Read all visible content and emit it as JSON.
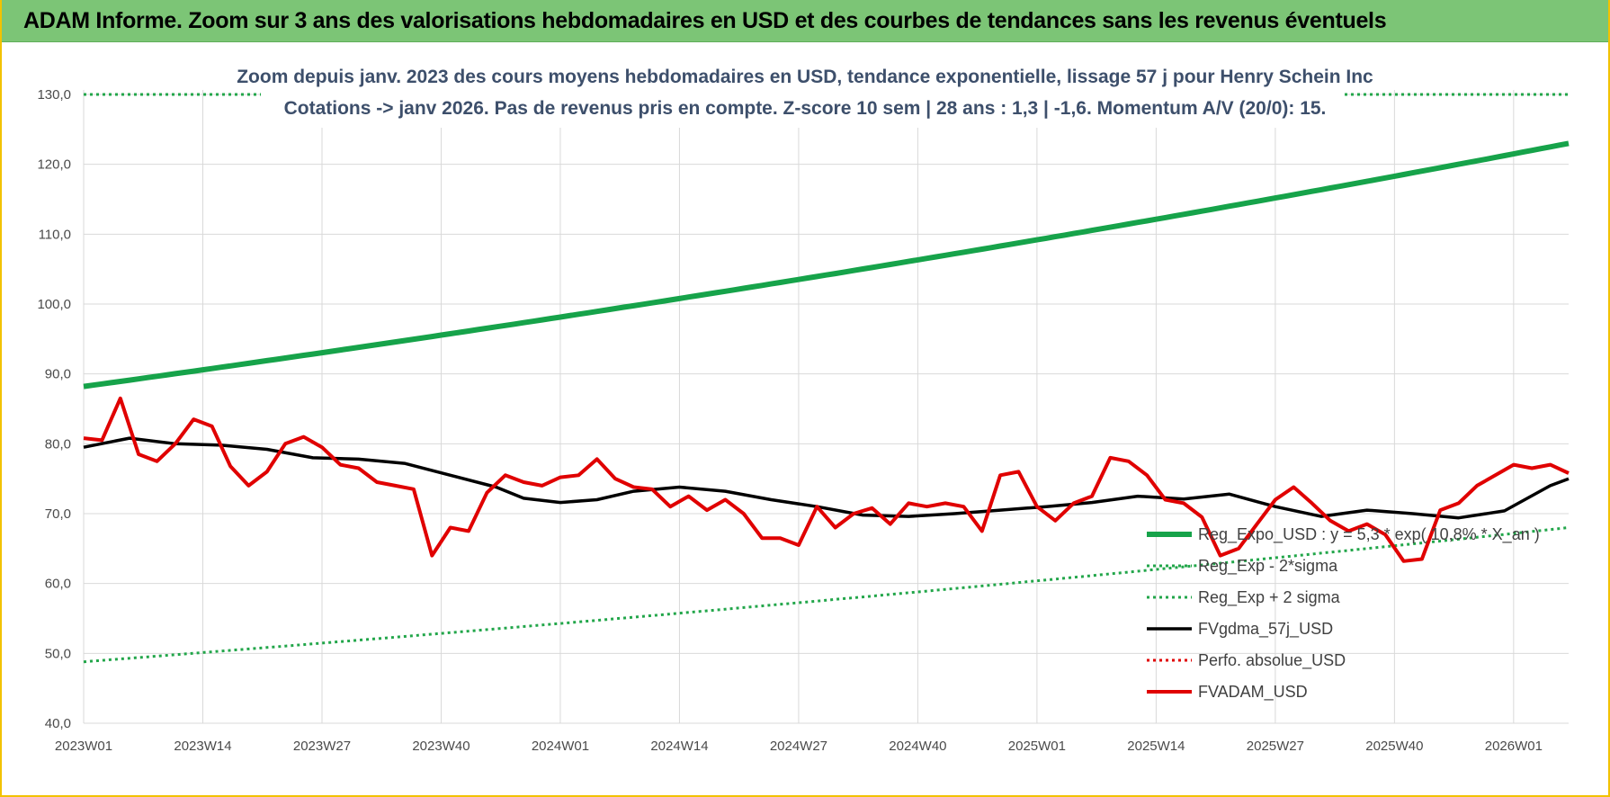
{
  "header": {
    "title": "ADAM Informe. Zoom sur 3 ans des valorisations hebdomadaires en USD et des courbes de tendances sans les revenus éventuels"
  },
  "chart_data": {
    "type": "line",
    "subtitle_line1": "Zoom depuis janv. 2023 des cours moyens hebdomadaires en USD, tendance exponentielle, lissage 57 j pour Henry Schein Inc",
    "subtitle_line2": "Cotations -> janv 2026. Pas de revenus pris en compte. Z-score 10 sem | 28 ans : 1,3 | -1,6. Momentum A/V (20/0): 15.",
    "x_tick_labels": [
      "2023W01",
      "2023W14",
      "2023W27",
      "2023W40",
      "2024W01",
      "2024W14",
      "2024W27",
      "2024W40",
      "2025W01",
      "2025W14",
      "2025W27",
      "2025W40",
      "2026W01"
    ],
    "y_tick_labels": [
      "40,0",
      "50,0",
      "60,0",
      "70,0",
      "80,0",
      "90,0",
      "100,0",
      "110,0",
      "120,0",
      "130,0"
    ],
    "ylim": [
      40,
      130
    ],
    "x_unit": "weeks since 2023W01",
    "xlim": [
      0,
      162
    ],
    "grid": true,
    "legend_position": "bottom-right",
    "series": [
      {
        "name": "Reg_Expo_USD : y = 5,3 * exp( 10,8% * X_an )",
        "color": "#16a34a",
        "style": "solid-thick",
        "x": [
          0,
          162
        ],
        "values": [
          88.2,
          123.0
        ],
        "curve": "exponential"
      },
      {
        "name": "Reg_Exp - 2*sigma",
        "color": "#22a64a",
        "style": "dotted",
        "x": [
          0,
          162
        ],
        "values": [
          48.8,
          68.0
        ],
        "curve": "exponential"
      },
      {
        "name": "Reg_Exp + 2 sigma",
        "color": "#22a64a",
        "style": "dotted",
        "x": [
          0,
          162
        ],
        "values": [
          130.0,
          130.0
        ],
        "curve": "linear"
      },
      {
        "name": "FVgdma_57j_USD",
        "color": "#000000",
        "style": "solid",
        "x": [
          0,
          5,
          10,
          15,
          20,
          25,
          30,
          35,
          40,
          45,
          48,
          52,
          56,
          60,
          65,
          70,
          75,
          80,
          85,
          90,
          95,
          100,
          105,
          110,
          115,
          120,
          125,
          130,
          135,
          140,
          145,
          150,
          155,
          160,
          162
        ],
        "values": [
          79.5,
          80.8,
          80.0,
          79.8,
          79.2,
          78.0,
          77.8,
          77.2,
          75.5,
          73.8,
          72.2,
          71.6,
          72.0,
          73.2,
          73.8,
          73.2,
          72.0,
          71.0,
          69.8,
          69.6,
          70.0,
          70.5,
          71.0,
          71.6,
          72.5,
          72.1,
          72.8,
          71.0,
          69.6,
          70.5,
          70.0,
          69.4,
          70.4,
          74.0,
          75.0
        ]
      },
      {
        "name": "Perfo. absolue_USD",
        "color": "#e00000",
        "style": "dotted",
        "x": [],
        "values": []
      },
      {
        "name": "FVADAM_USD",
        "color": "#e00000",
        "style": "solid",
        "x": [
          0,
          2,
          4,
          6,
          8,
          10,
          12,
          14,
          16,
          18,
          20,
          22,
          24,
          26,
          28,
          30,
          32,
          34,
          36,
          38,
          40,
          42,
          44,
          46,
          48,
          50,
          52,
          54,
          56,
          58,
          60,
          62,
          64,
          66,
          68,
          70,
          72,
          74,
          76,
          78,
          80,
          82,
          84,
          86,
          88,
          90,
          92,
          94,
          96,
          98,
          100,
          102,
          104,
          106,
          108,
          110,
          112,
          114,
          116,
          118,
          120,
          122,
          124,
          126,
          128,
          130,
          132,
          134,
          136,
          138,
          140,
          142,
          144,
          146,
          148,
          150,
          152,
          154,
          156,
          158,
          160,
          162
        ],
        "values": [
          80.8,
          80.5,
          86.5,
          78.5,
          77.5,
          80.0,
          83.5,
          82.5,
          76.8,
          74.0,
          76.0,
          80.0,
          81.0,
          79.5,
          77.0,
          76.5,
          74.5,
          74.0,
          73.5,
          64.0,
          68.0,
          67.5,
          73.0,
          75.5,
          74.5,
          74.0,
          75.2,
          75.5,
          77.8,
          75.0,
          73.8,
          73.5,
          71.0,
          72.5,
          70.5,
          72.0,
          70.0,
          66.5,
          66.5,
          65.5,
          71.0,
          68.0,
          70.0,
          70.8,
          68.5,
          71.5,
          71.0,
          71.5,
          71.0,
          67.5,
          75.5,
          76.0,
          71.0,
          69.0,
          71.5,
          72.5,
          78.0,
          77.5,
          75.5,
          72.0,
          71.5,
          69.5,
          64.0,
          65.0,
          68.5,
          72.0,
          73.8,
          71.5,
          69.0,
          67.5,
          68.5,
          67.0,
          63.2,
          63.5,
          70.5,
          71.5,
          74.0,
          75.5,
          77.0,
          76.5,
          77.0,
          75.8
        ]
      }
    ]
  }
}
